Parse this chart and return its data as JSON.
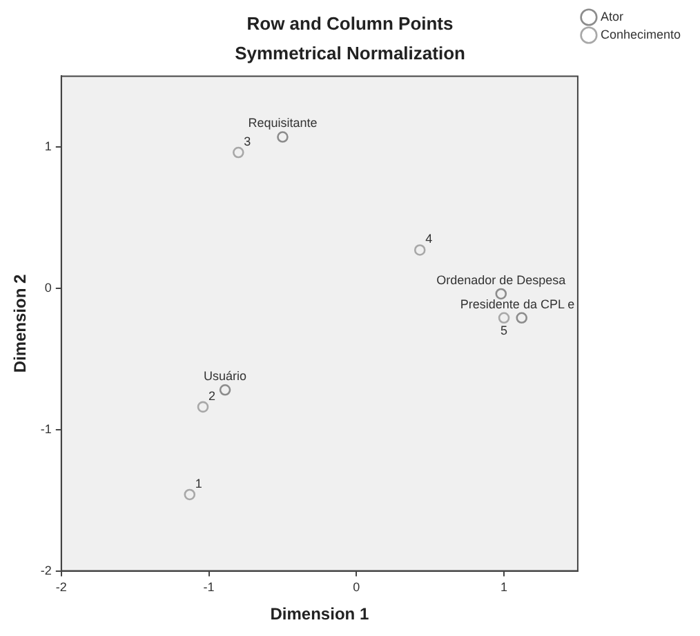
{
  "chart_data": {
    "type": "scatter",
    "title": "Row and Column Points",
    "subtitle": "Symmetrical Normalization",
    "xlabel": "Dimension 1",
    "ylabel": "Dimension 2",
    "series": [
      {
        "name": "Ator",
        "color": "#8c8c8c",
        "x": [
          -0.5,
          0.98,
          1.12,
          -0.89
        ],
        "values": [
          1.07,
          -0.04,
          -0.21,
          -0.72
        ]
      },
      {
        "name": "Conhecimento",
        "color": "#a8a8a8",
        "x": [
          -1.13,
          -1.04,
          -0.8,
          0.43,
          1.0
        ],
        "values": [
          -1.46,
          -0.84,
          0.96,
          0.27,
          -0.21
        ]
      }
    ],
    "annotations": [
      {
        "text": "Requisitante",
        "x": -0.5,
        "y": 1.07
      },
      {
        "text": "Ordenador de Despesa",
        "x": 0.98,
        "y": -0.04
      },
      {
        "text": "Presidente da CPL e",
        "x": 1.12,
        "y": -0.21
      },
      {
        "text": "Usuário",
        "x": -0.89,
        "y": -0.72
      },
      {
        "text": "1",
        "x": -1.13,
        "y": -1.46
      },
      {
        "text": "2",
        "x": -1.04,
        "y": -0.84
      },
      {
        "text": "3",
        "x": -0.8,
        "y": 0.96
      },
      {
        "text": "4",
        "x": 0.43,
        "y": 0.27
      },
      {
        "text": "5",
        "x": 1.0,
        "y": -0.21
      }
    ],
    "xlim": [
      -2,
      1.5
    ],
    "ylim": [
      -2,
      1.5
    ],
    "xticks": [
      -2,
      -1,
      0,
      1
    ],
    "yticks": [
      -2,
      -1,
      0,
      1
    ],
    "grid": false,
    "legend": "top right",
    "marker": "circle"
  }
}
